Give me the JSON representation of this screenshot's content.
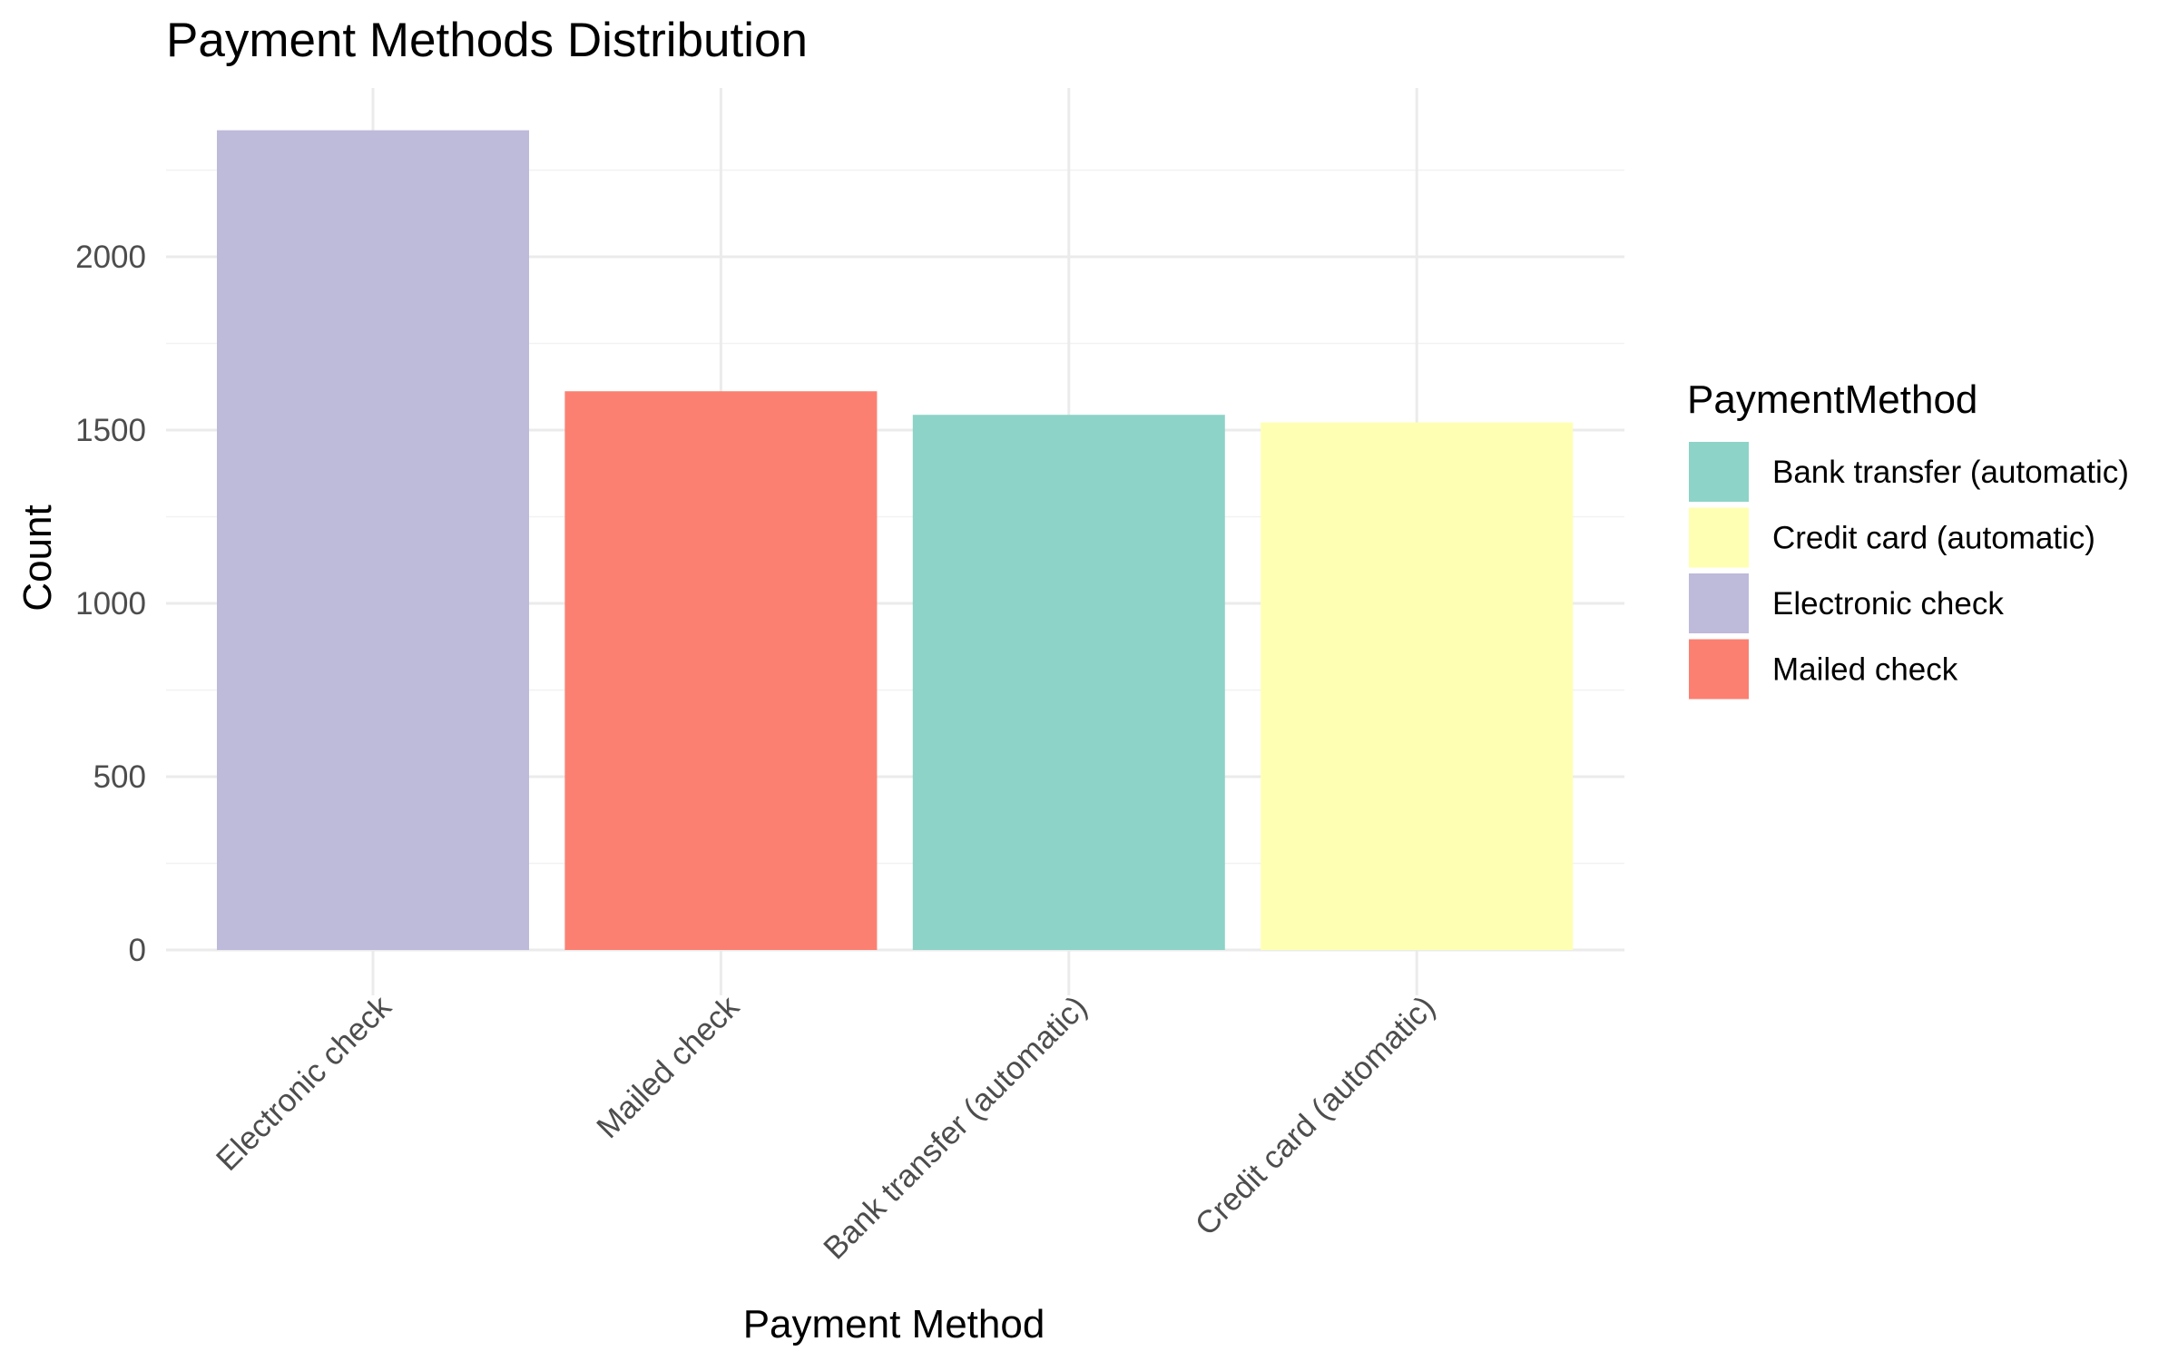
{
  "chart_data": {
    "type": "bar",
    "title": "Payment Methods Distribution",
    "xlabel": "Payment Method",
    "ylabel": "Count",
    "categories": [
      "Electronic check",
      "Mailed check",
      "Bank transfer (automatic)",
      "Credit card (automatic)"
    ],
    "values": [
      2365,
      1612,
      1544,
      1522
    ],
    "bar_colors": [
      "#bebada",
      "#fb8072",
      "#8dd3c7",
      "#ffffb3"
    ],
    "ylim": [
      0,
      2400
    ],
    "yticks": [
      0,
      500,
      1000,
      1500,
      2000
    ],
    "grid": true,
    "legend": {
      "title": "PaymentMethod",
      "placement": "right",
      "items": [
        {
          "label": "Bank transfer (automatic)",
          "color": "#8dd3c7"
        },
        {
          "label": "Credit card (automatic)",
          "color": "#ffffb3"
        },
        {
          "label": "Electronic check",
          "color": "#bebada"
        },
        {
          "label": "Mailed check",
          "color": "#fb8072"
        }
      ]
    }
  }
}
